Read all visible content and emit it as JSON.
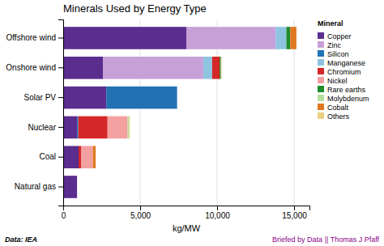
{
  "chart_data": {
    "type": "bar",
    "orientation": "horizontal",
    "stacked": true,
    "title": "Minerals Used by Energy Type",
    "xlabel": "kg/MW",
    "categories": [
      "Natural gas",
      "Coal",
      "Nuclear",
      "Solar PV",
      "Onshore wind",
      "Offshore wind"
    ],
    "series": [
      {
        "name": "Copper",
        "color": "#5b2d8e",
        "values": [
          900,
          1000,
          900,
          2800,
          2600,
          8000
        ]
      },
      {
        "name": "Zinc",
        "color": "#c8a0d8",
        "values": [
          0,
          0,
          0,
          0,
          6500,
          5800
        ]
      },
      {
        "name": "Silicon",
        "color": "#2271b3",
        "values": [
          0,
          0,
          80,
          4600,
          0,
          0
        ]
      },
      {
        "name": "Manganese",
        "color": "#8ec4e0",
        "values": [
          0,
          0,
          0,
          0,
          580,
          700
        ]
      },
      {
        "name": "Chromium",
        "color": "#d62728",
        "values": [
          0,
          180,
          1900,
          0,
          480,
          0
        ]
      },
      {
        "name": "Nickel",
        "color": "#f4a0a0",
        "values": [
          0,
          750,
          1300,
          0,
          0,
          0
        ]
      },
      {
        "name": "Rare earths",
        "color": "#1f8c2a",
        "values": [
          0,
          0,
          0,
          0,
          80,
          250
        ]
      },
      {
        "name": "Molybdenum",
        "color": "#b8e0a0",
        "values": [
          0,
          0,
          100,
          0,
          0,
          0
        ]
      },
      {
        "name": "Cobalt",
        "color": "#e07820",
        "values": [
          0,
          180,
          0,
          0,
          0,
          400
        ]
      },
      {
        "name": "Others",
        "color": "#e8d080",
        "values": [
          0,
          0,
          50,
          0,
          50,
          0
        ]
      }
    ],
    "xlim": [
      0,
      16000
    ],
    "xticks": [
      0,
      {
        "value": 5000,
        "label": "5,000"
      },
      {
        "value": 10000,
        "label": "10,000"
      },
      {
        "value": 15000,
        "label": "15,000"
      }
    ],
    "grid": true,
    "legend": "upper right",
    "legend_title": "Mineral",
    "annotations": [
      {
        "text": "Data: IEA"
      },
      {
        "text": "Briefed by Data || Thomas J Pfaff",
        "color": "#8b008b"
      }
    ]
  }
}
